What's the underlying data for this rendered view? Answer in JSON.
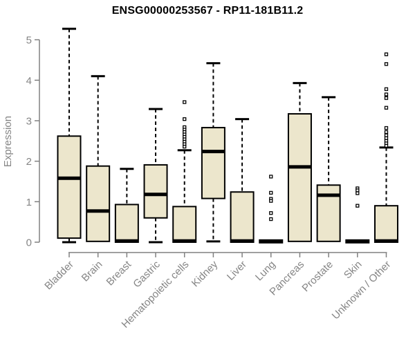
{
  "chart_data": {
    "type": "boxplot",
    "title": "ENSG00000253567 - RP11-181B11.2",
    "ylabel": "Expression",
    "xlabel": "",
    "ylim": [
      0,
      5
    ],
    "yticks": [
      0,
      1,
      2,
      3,
      4,
      5
    ],
    "grid": false,
    "legend": null,
    "categories": [
      "Bladder",
      "Brain",
      "Breast",
      "Gastric",
      "Hematopoietic cells",
      "Kidney",
      "Liver",
      "Lung",
      "Pancreas",
      "Prostate",
      "Skin",
      "Unknown / Other"
    ],
    "boxes": [
      {
        "name": "Bladder",
        "whisker_low": 0.0,
        "q1": 0.1,
        "median": 1.58,
        "q3": 2.62,
        "whisker_high": 5.27,
        "outliers": []
      },
      {
        "name": "Brain",
        "whisker_low": 0.0,
        "q1": 0.02,
        "median": 0.77,
        "q3": 1.88,
        "whisker_high": 4.1,
        "outliers": []
      },
      {
        "name": "Breast",
        "whisker_low": 0.0,
        "q1": 0.0,
        "median": 0.03,
        "q3": 0.93,
        "whisker_high": 1.81,
        "outliers": []
      },
      {
        "name": "Gastric",
        "whisker_low": 0.0,
        "q1": 0.6,
        "median": 1.18,
        "q3": 1.91,
        "whisker_high": 3.29,
        "outliers": []
      },
      {
        "name": "Hematopoietic cells",
        "whisker_low": 0.0,
        "q1": 0.0,
        "median": 0.03,
        "q3": 0.88,
        "whisker_high": 2.27,
        "outliers": [
          3.46,
          3.04,
          2.84,
          2.78,
          2.72,
          2.66,
          2.6,
          2.54,
          2.48,
          2.42,
          2.36
        ]
      },
      {
        "name": "Kidney",
        "whisker_low": 0.02,
        "q1": 1.08,
        "median": 2.24,
        "q3": 2.83,
        "whisker_high": 4.42,
        "outliers": []
      },
      {
        "name": "Liver",
        "whisker_low": 0.0,
        "q1": 0.0,
        "median": 0.03,
        "q3": 1.24,
        "whisker_high": 3.04,
        "outliers": []
      },
      {
        "name": "Lung",
        "whisker_low": 0.0,
        "q1": 0.0,
        "median": 0.02,
        "q3": 0.02,
        "whisker_high": 0.02,
        "outliers": [
          1.62,
          1.22,
          1.07,
          1.02,
          0.72,
          0.57
        ]
      },
      {
        "name": "Pancreas",
        "whisker_low": 0.0,
        "q1": 0.02,
        "median": 1.86,
        "q3": 3.17,
        "whisker_high": 3.93,
        "outliers": []
      },
      {
        "name": "Prostate",
        "whisker_low": 0.0,
        "q1": 0.02,
        "median": 1.16,
        "q3": 1.41,
        "whisker_high": 3.58,
        "outliers": []
      },
      {
        "name": "Skin",
        "whisker_low": 0.0,
        "q1": 0.0,
        "median": 0.02,
        "q3": 0.02,
        "whisker_high": 0.02,
        "outliers": [
          1.33,
          1.28,
          1.21,
          0.9
        ]
      },
      {
        "name": "Unknown / Other",
        "whisker_low": 0.0,
        "q1": 0.0,
        "median": 0.03,
        "q3": 0.9,
        "whisker_high": 2.34,
        "outliers": [
          4.64,
          4.4,
          3.78,
          3.65,
          3.56,
          3.32,
          2.82,
          2.72,
          2.64,
          2.57,
          2.5,
          2.44,
          2.38
        ]
      }
    ],
    "colors": {
      "box_fill": "#ECE6CC",
      "box_stroke": "#000000",
      "median": "#000000",
      "whisker": "#000000",
      "outlier_stroke": "#000000",
      "outlier_fill": "#ffffff",
      "axis": "#808080",
      "tick_label": "#858585",
      "title": "#000000",
      "background": "#ffffff"
    }
  }
}
